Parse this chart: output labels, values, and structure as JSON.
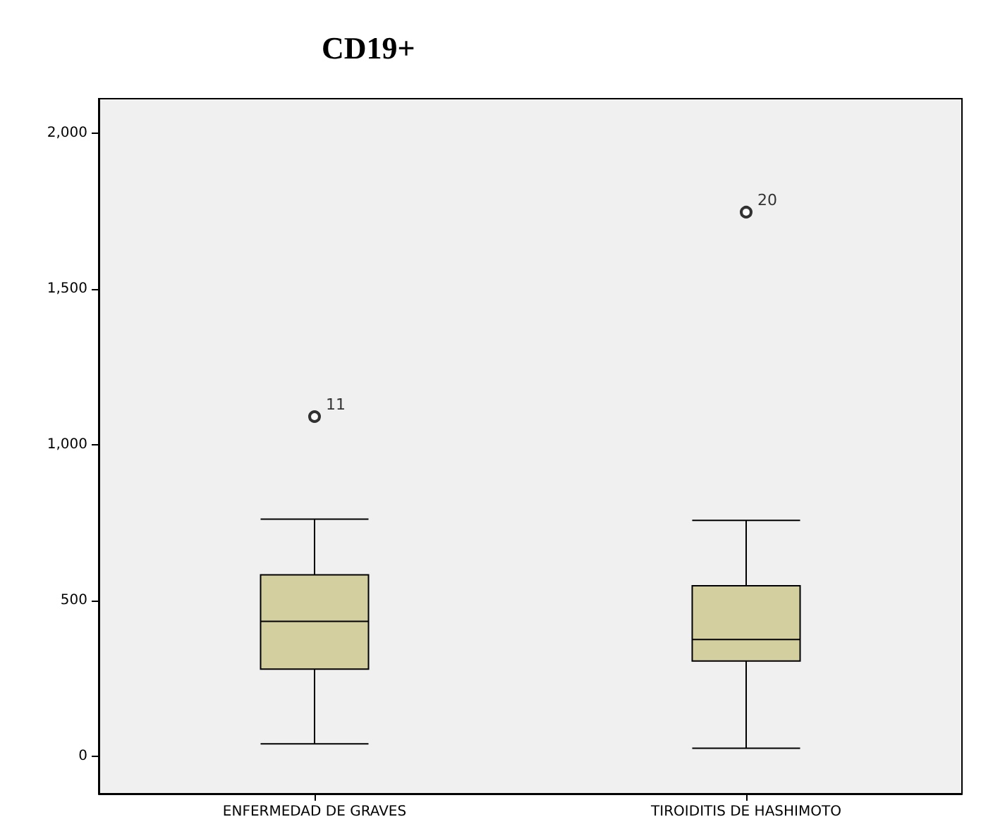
{
  "chart_data": {
    "type": "box",
    "title": "CD19+",
    "categories": [
      "ENFERMEDAD DE GRAVES",
      "TIROIDITIS DE HASHIMOTO"
    ],
    "boxes": [
      {
        "low": 40,
        "q1": 280,
        "median": 433,
        "q3": 582,
        "high": 761,
        "outliers": [
          1090
        ]
      },
      {
        "low": 26,
        "q1": 306,
        "median": 375,
        "q3": 547,
        "high": 757,
        "outliers": [
          1746
        ]
      }
    ],
    "color": "#d4cf9f",
    "ylim": [
      -120,
      2110
    ],
    "yticks": [
      {
        "value": 0,
        "label": "0"
      },
      {
        "value": 500,
        "label": "500"
      },
      {
        "value": 1000,
        "label": "1,000"
      },
      {
        "value": 1500,
        "label": "1,500"
      },
      {
        "value": 2000,
        "label": "2,000"
      }
    ],
    "annotations": [
      "11",
      "20"
    ]
  }
}
